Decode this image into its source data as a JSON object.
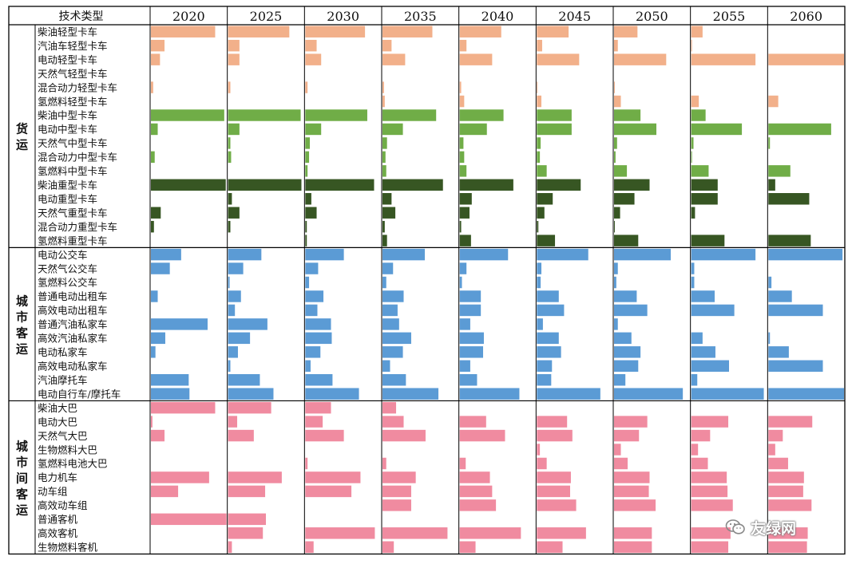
{
  "header": {
    "tech_label": "技术类型",
    "years": [
      "2020",
      "2025",
      "2030",
      "2035",
      "2040",
      "2045",
      "2050",
      "2055",
      "2060"
    ]
  },
  "watermark": {
    "text": "友绿网",
    "icon": "wechat-icon"
  },
  "chart_data": {
    "type": "bar",
    "groups": [
      {
        "label": "货运",
        "rows": [
          {
            "name": "柴油轻型卡车",
            "color": "#f2b08a",
            "values": [
              0.85,
              0.81,
              0.79,
              0.66,
              0.55,
              0.42,
              0.31,
              0.15,
              0.0
            ]
          },
          {
            "name": "汽油车轻型卡车",
            "color": "#f2b08a",
            "values": [
              0.18,
              0.15,
              0.15,
              0.12,
              0.09,
              0.07,
              0.05,
              0.01,
              0.0
            ]
          },
          {
            "name": "电动轻型卡车",
            "color": "#f2b08a",
            "values": [
              0.12,
              0.15,
              0.21,
              0.3,
              0.43,
              0.56,
              0.69,
              0.85,
              1.0
            ]
          },
          {
            "name": "天然气轻型卡车",
            "color": "#f2b08a",
            "values": [
              0.0,
              0.0,
              0.0,
              0.0,
              0.0,
              0.0,
              0.0,
              0.0,
              0.0
            ]
          },
          {
            "name": "混合动力轻型卡车",
            "color": "#f2b08a",
            "values": [
              0.03,
              0.03,
              0.03,
              0.02,
              0.02,
              0.01,
              0.01,
              0.0,
              0.0
            ]
          },
          {
            "name": "氢燃料轻型卡车",
            "color": "#f2b08a",
            "values": [
              0.0,
              0.0,
              0.0,
              0.03,
              0.06,
              0.06,
              0.09,
              0.1,
              0.13
            ]
          },
          {
            "name": "柴油中型卡车",
            "color": "#70ad47",
            "values": [
              0.97,
              0.96,
              0.82,
              0.71,
              0.58,
              0.46,
              0.35,
              0.19,
              0.0
            ]
          },
          {
            "name": "电动中型卡车",
            "color": "#70ad47",
            "values": [
              0.09,
              0.15,
              0.21,
              0.27,
              0.36,
              0.46,
              0.56,
              0.67,
              0.83
            ]
          },
          {
            "name": "天然气中型卡车",
            "color": "#70ad47",
            "values": [
              0.0,
              0.03,
              0.06,
              0.06,
              0.05,
              0.05,
              0.04,
              0.03,
              0.02
            ]
          },
          {
            "name": "混合动力中型卡车",
            "color": "#70ad47",
            "values": [
              0.05,
              0.04,
              0.05,
              0.04,
              0.06,
              0.04,
              0.02,
              0.01,
              0.0
            ]
          },
          {
            "name": "氢燃料中型卡车",
            "color": "#70ad47",
            "values": [
              0.0,
              0.0,
              0.03,
              0.05,
              0.09,
              0.13,
              0.17,
              0.23,
              0.29
            ]
          },
          {
            "name": "柴油重型卡车",
            "color": "#375623",
            "values": [
              0.99,
              0.97,
              0.91,
              0.8,
              0.71,
              0.58,
              0.47,
              0.35,
              0.09
            ]
          },
          {
            "name": "电动重型卡车",
            "color": "#375623",
            "values": [
              0.0,
              0.05,
              0.08,
              0.12,
              0.16,
              0.21,
              0.27,
              0.35,
              0.54
            ]
          },
          {
            "name": "天然气重型卡车",
            "color": "#375623",
            "values": [
              0.13,
              0.15,
              0.15,
              0.17,
              0.13,
              0.1,
              0.08,
              0.05,
              0.0
            ]
          },
          {
            "name": "混合动力重型卡车",
            "color": "#375623",
            "values": [
              0.04,
              0.03,
              0.02,
              0.03,
              0.02,
              0.02,
              0.01,
              0.0,
              0.0
            ]
          },
          {
            "name": "氢燃料重型卡车",
            "color": "#375623",
            "values": [
              0.0,
              0.0,
              0.02,
              0.06,
              0.15,
              0.24,
              0.32,
              0.44,
              0.56
            ]
          }
        ]
      },
      {
        "label": "城市客运",
        "rows": [
          {
            "name": "电动公交车",
            "color": "#5b9bd5",
            "values": [
              0.4,
              0.44,
              0.51,
              0.56,
              0.64,
              0.68,
              0.75,
              0.85,
              0.98
            ]
          },
          {
            "name": "天然气公交车",
            "color": "#5b9bd5",
            "values": [
              0.25,
              0.2,
              0.17,
              0.14,
              0.09,
              0.06,
              0.05,
              0.04,
              0.0
            ]
          },
          {
            "name": "氢燃料公交车",
            "color": "#5b9bd5",
            "values": [
              0.0,
              0.02,
              0.05,
              0.05,
              0.03,
              0.05,
              0.03,
              0.04,
              0.04
            ]
          },
          {
            "name": "普通电动出租车",
            "color": "#5b9bd5",
            "values": [
              0.09,
              0.17,
              0.24,
              0.28,
              0.28,
              0.29,
              0.3,
              0.31,
              0.31
            ]
          },
          {
            "name": "高效电动出租车",
            "color": "#5b9bd5",
            "values": [
              0.0,
              0.09,
              0.16,
              0.2,
              0.28,
              0.36,
              0.44,
              0.57,
              0.72
            ]
          },
          {
            "name": "普通汽油私家车",
            "color": "#5b9bd5",
            "values": [
              0.75,
              0.52,
              0.34,
              0.22,
              0.14,
              0.08,
              0.05,
              0.0,
              0.0
            ]
          },
          {
            "name": "高效汽油私家车",
            "color": "#5b9bd5",
            "values": [
              0.19,
              0.29,
              0.35,
              0.38,
              0.32,
              0.29,
              0.23,
              0.15,
              0.02
            ]
          },
          {
            "name": "电动私家车",
            "color": "#5b9bd5",
            "values": [
              0.06,
              0.13,
              0.2,
              0.27,
              0.31,
              0.32,
              0.35,
              0.32,
              0.27
            ]
          },
          {
            "name": "高效电动私家车",
            "color": "#5b9bd5",
            "values": [
              0.0,
              0.03,
              0.07,
              0.1,
              0.14,
              0.2,
              0.32,
              0.5,
              0.72
            ]
          },
          {
            "name": "汽油摩托车",
            "color": "#5b9bd5",
            "values": [
              0.5,
              0.42,
              0.36,
              0.31,
              0.23,
              0.19,
              0.15,
              0.08,
              0.0
            ]
          },
          {
            "name": "电动自行车/摩托车",
            "color": "#5b9bd5",
            "values": [
              0.51,
              0.6,
              0.71,
              0.74,
              0.79,
              0.84,
              0.91,
              0.96,
              1.0
            ]
          }
        ]
      },
      {
        "label": "城市间客运",
        "rows": [
          {
            "name": "柴油大巴",
            "color": "#f08ba0",
            "values": [
              0.85,
              0.57,
              0.34,
              0.18,
              0.0,
              0.0,
              0.0,
              0.0,
              0.0
            ]
          },
          {
            "name": "电动大巴",
            "color": "#f08ba0",
            "values": [
              0.02,
              0.12,
              0.23,
              0.28,
              0.35,
              0.4,
              0.44,
              0.49,
              0.58
            ]
          },
          {
            "name": "天然气大巴",
            "color": "#f08ba0",
            "values": [
              0.18,
              0.34,
              0.51,
              0.57,
              0.6,
              0.47,
              0.33,
              0.25,
              0.19
            ]
          },
          {
            "name": "生物燃料大巴",
            "color": "#f08ba0",
            "values": [
              0.0,
              0.0,
              0.0,
              0.0,
              0.0,
              0.04,
              0.09,
              0.09,
              0.09
            ]
          },
          {
            "name": "氢燃料电池大巴",
            "color": "#f08ba0",
            "values": [
              0.0,
              0.0,
              0.03,
              0.05,
              0.08,
              0.13,
              0.18,
              0.22,
              0.26
            ]
          },
          {
            "name": "电力机车",
            "color": "#f08ba0",
            "values": [
              0.77,
              0.71,
              0.73,
              0.44,
              0.4,
              0.45,
              0.47,
              0.47,
              0.47
            ]
          },
          {
            "name": "动车组",
            "color": "#f08ba0",
            "values": [
              0.36,
              0.49,
              0.61,
              0.38,
              0.43,
              0.44,
              0.46,
              0.48,
              0.46
            ]
          },
          {
            "name": "高效动车组",
            "color": "#f08ba0",
            "values": [
              0.0,
              0.0,
              0.0,
              0.38,
              0.48,
              0.52,
              0.55,
              0.55,
              0.57
            ]
          },
          {
            "name": "普通客机",
            "color": "#f08ba0",
            "values": [
              1.0,
              0.5,
              0.0,
              0.0,
              0.0,
              0.0,
              0.0,
              0.0,
              0.0
            ]
          },
          {
            "name": "高效客机",
            "color": "#f08ba0",
            "values": [
              0.0,
              0.46,
              0.92,
              0.86,
              0.81,
              0.65,
              0.5,
              0.52,
              0.52
            ]
          },
          {
            "name": "生物燃料客机",
            "color": "#f08ba0",
            "values": [
              0.0,
              0.05,
              0.11,
              0.15,
              0.21,
              0.34,
              0.5,
              0.49,
              0.51
            ]
          }
        ]
      }
    ]
  }
}
